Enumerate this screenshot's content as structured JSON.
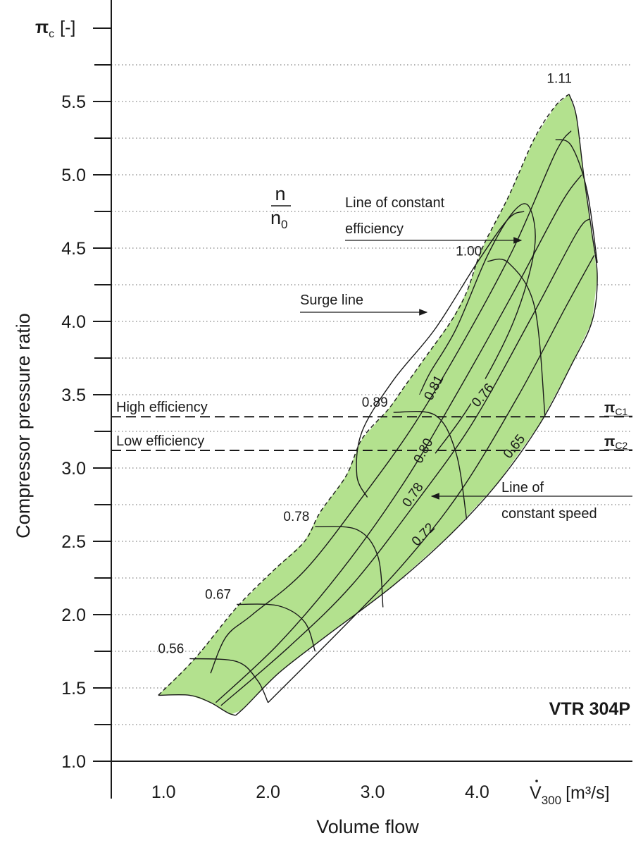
{
  "chart_data": {
    "type": "line",
    "title": "",
    "model": "VTR 304P",
    "xlabel": "Volume flow",
    "ylabel": "Compressor pressure ratio",
    "x_unit_label": "[m³/s]",
    "x_symbol": "V",
    "x_symbol_sub": "300",
    "y_unit_label": "[-]",
    "y_symbol": "π",
    "y_symbol_sub": "c",
    "xlim": [
      0.5,
      5.5
    ],
    "ylim": [
      1.0,
      6.0
    ],
    "x_ticks": [
      "1.0",
      "2.0",
      "3.0",
      "4.0"
    ],
    "x_tick_values": [
      1.0,
      2.0,
      3.0,
      4.0
    ],
    "y_ticks": [
      "1.0",
      "1.5",
      "2.0",
      "2.5",
      "3.0",
      "3.5",
      "4.0",
      "4.5",
      "5.0",
      "5.5"
    ],
    "y_tick_values": [
      1.0,
      1.5,
      2.0,
      2.5,
      3.0,
      3.5,
      4.0,
      4.5,
      5.0,
      5.5
    ],
    "grid": "horizontal dotted",
    "map_fill_color": "#b3e18e",
    "line_color": "#1a1a1a",
    "map_outline": [
      [
        0.95,
        1.45
      ],
      [
        1.3,
        1.7
      ],
      [
        1.7,
        2.05
      ],
      [
        2.05,
        2.3
      ],
      [
        2.35,
        2.5
      ],
      [
        2.5,
        2.7
      ],
      [
        2.75,
        2.95
      ],
      [
        2.9,
        3.2
      ],
      [
        3.15,
        3.4
      ],
      [
        3.3,
        3.55
      ],
      [
        3.5,
        3.75
      ],
      [
        3.75,
        4.0
      ],
      [
        3.9,
        4.2
      ],
      [
        4.05,
        4.5
      ],
      [
        4.3,
        4.85
      ],
      [
        4.55,
        5.25
      ],
      [
        4.75,
        5.47
      ],
      [
        4.88,
        5.55
      ],
      [
        4.95,
        5.4
      ],
      [
        5.02,
        5.0
      ],
      [
        5.1,
        4.6
      ],
      [
        5.15,
        4.3
      ],
      [
        5.1,
        4.0
      ],
      [
        4.9,
        3.7
      ],
      [
        4.6,
        3.3
      ],
      [
        4.2,
        2.9
      ],
      [
        3.75,
        2.55
      ],
      [
        3.2,
        2.2
      ],
      [
        2.55,
        1.85
      ],
      [
        2.1,
        1.6
      ],
      [
        1.75,
        1.35
      ],
      [
        1.65,
        1.32
      ],
      [
        1.45,
        1.4
      ],
      [
        1.25,
        1.45
      ],
      [
        0.95,
        1.45
      ]
    ],
    "surge_line": {
      "label": "Surge line",
      "points": [
        [
          0.95,
          1.45
        ],
        [
          1.3,
          1.7
        ],
        [
          1.7,
          2.05
        ],
        [
          2.05,
          2.3
        ],
        [
          2.35,
          2.5
        ],
        [
          2.5,
          2.7
        ],
        [
          2.75,
          2.95
        ],
        [
          2.9,
          3.2
        ],
        [
          3.15,
          3.4
        ],
        [
          3.3,
          3.55
        ],
        [
          3.5,
          3.75
        ],
        [
          3.75,
          4.0
        ],
        [
          3.9,
          4.2
        ],
        [
          4.05,
          4.5
        ],
        [
          4.3,
          4.85
        ],
        [
          4.55,
          5.25
        ],
        [
          4.75,
          5.47
        ],
        [
          4.88,
          5.55
        ]
      ]
    },
    "speed_lines": [
      {
        "label": "0.56",
        "points": [
          [
            1.25,
            1.7
          ],
          [
            1.7,
            1.68
          ],
          [
            1.9,
            1.55
          ],
          [
            2.0,
            1.4
          ]
        ]
      },
      {
        "label": "0.67",
        "points": [
          [
            1.7,
            2.07
          ],
          [
            2.1,
            2.06
          ],
          [
            2.35,
            1.95
          ],
          [
            2.45,
            1.75
          ]
        ]
      },
      {
        "label": "0.78",
        "points": [
          [
            2.45,
            2.6
          ],
          [
            2.85,
            2.58
          ],
          [
            3.05,
            2.4
          ],
          [
            3.1,
            2.05
          ]
        ]
      },
      {
        "label": "0.89",
        "points": [
          [
            3.2,
            3.38
          ],
          [
            3.6,
            3.36
          ],
          [
            3.8,
            3.1
          ],
          [
            3.9,
            2.65
          ]
        ]
      },
      {
        "label": "1.00",
        "points": [
          [
            4.1,
            4.41
          ],
          [
            4.3,
            4.4
          ],
          [
            4.55,
            4.1
          ],
          [
            4.65,
            3.35
          ]
        ]
      },
      {
        "label": "1.11",
        "points": [
          [
            4.75,
            5.24
          ],
          [
            4.9,
            5.2
          ],
          [
            5.05,
            4.9
          ],
          [
            5.15,
            4.4
          ]
        ]
      }
    ],
    "efficiency_lines": [
      {
        "label": "0.81",
        "points": [
          [
            3.45,
            3.5
          ],
          [
            3.55,
            3.65
          ],
          [
            3.8,
            3.95
          ],
          [
            4.1,
            4.45
          ],
          [
            4.35,
            4.75
          ],
          [
            4.5,
            4.78
          ],
          [
            4.55,
            4.5
          ],
          [
            4.35,
            4.0
          ],
          [
            3.95,
            3.45
          ],
          [
            3.6,
            3.1
          ]
        ]
      },
      {
        "label": "0.80",
        "points": [
          [
            2.95,
            2.8
          ],
          [
            2.85,
            2.95
          ],
          [
            2.9,
            3.25
          ],
          [
            3.2,
            3.6
          ],
          [
            3.6,
            3.95
          ],
          [
            4.0,
            4.4
          ],
          [
            4.3,
            4.7
          ],
          [
            4.45,
            4.75
          ]
        ]
      },
      {
        "label": "0.78",
        "points": [
          [
            1.45,
            1.6
          ],
          [
            1.6,
            1.85
          ],
          [
            1.85,
            2.0
          ],
          [
            2.35,
            2.3
          ],
          [
            2.9,
            2.8
          ],
          [
            3.4,
            3.3
          ],
          [
            3.9,
            3.9
          ],
          [
            4.35,
            4.5
          ],
          [
            4.75,
            5.15
          ],
          [
            4.9,
            5.3
          ]
        ]
      },
      {
        "label": "0.76",
        "points": [
          [
            1.5,
            1.4
          ],
          [
            2.1,
            1.8
          ],
          [
            2.7,
            2.3
          ],
          [
            3.3,
            2.9
          ],
          [
            3.8,
            3.5
          ],
          [
            4.35,
            4.2
          ],
          [
            4.8,
            4.8
          ],
          [
            5.0,
            5.0
          ]
        ]
      },
      {
        "label": "0.72",
        "points": [
          [
            1.55,
            1.38
          ],
          [
            2.2,
            1.78
          ],
          [
            2.8,
            2.2
          ],
          [
            3.4,
            2.75
          ],
          [
            3.95,
            3.3
          ],
          [
            4.5,
            4.0
          ],
          [
            4.95,
            4.6
          ],
          [
            5.08,
            4.7
          ]
        ]
      },
      {
        "label": "0.65",
        "points": [
          [
            2.0,
            1.4
          ],
          [
            2.7,
            1.9
          ],
          [
            3.3,
            2.35
          ],
          [
            3.85,
            2.85
          ],
          [
            4.4,
            3.5
          ],
          [
            4.85,
            4.1
          ],
          [
            5.12,
            4.45
          ]
        ]
      }
    ],
    "reference_lines": [
      {
        "label": "High efficiency",
        "y": 3.35,
        "symbol": "π",
        "symbol_sub": "C1"
      },
      {
        "label": "Low efficiency",
        "y": 3.12,
        "symbol": "π",
        "symbol_sub": "C2"
      }
    ],
    "annotations": {
      "speed_ratio_num": "n",
      "speed_ratio_den": "n",
      "speed_ratio_den_sub": "0",
      "const_eff_line1": "Line of constant",
      "const_eff_line2": "efficiency",
      "const_speed_line1": "Line of",
      "const_speed_line2": "constant  speed"
    }
  }
}
